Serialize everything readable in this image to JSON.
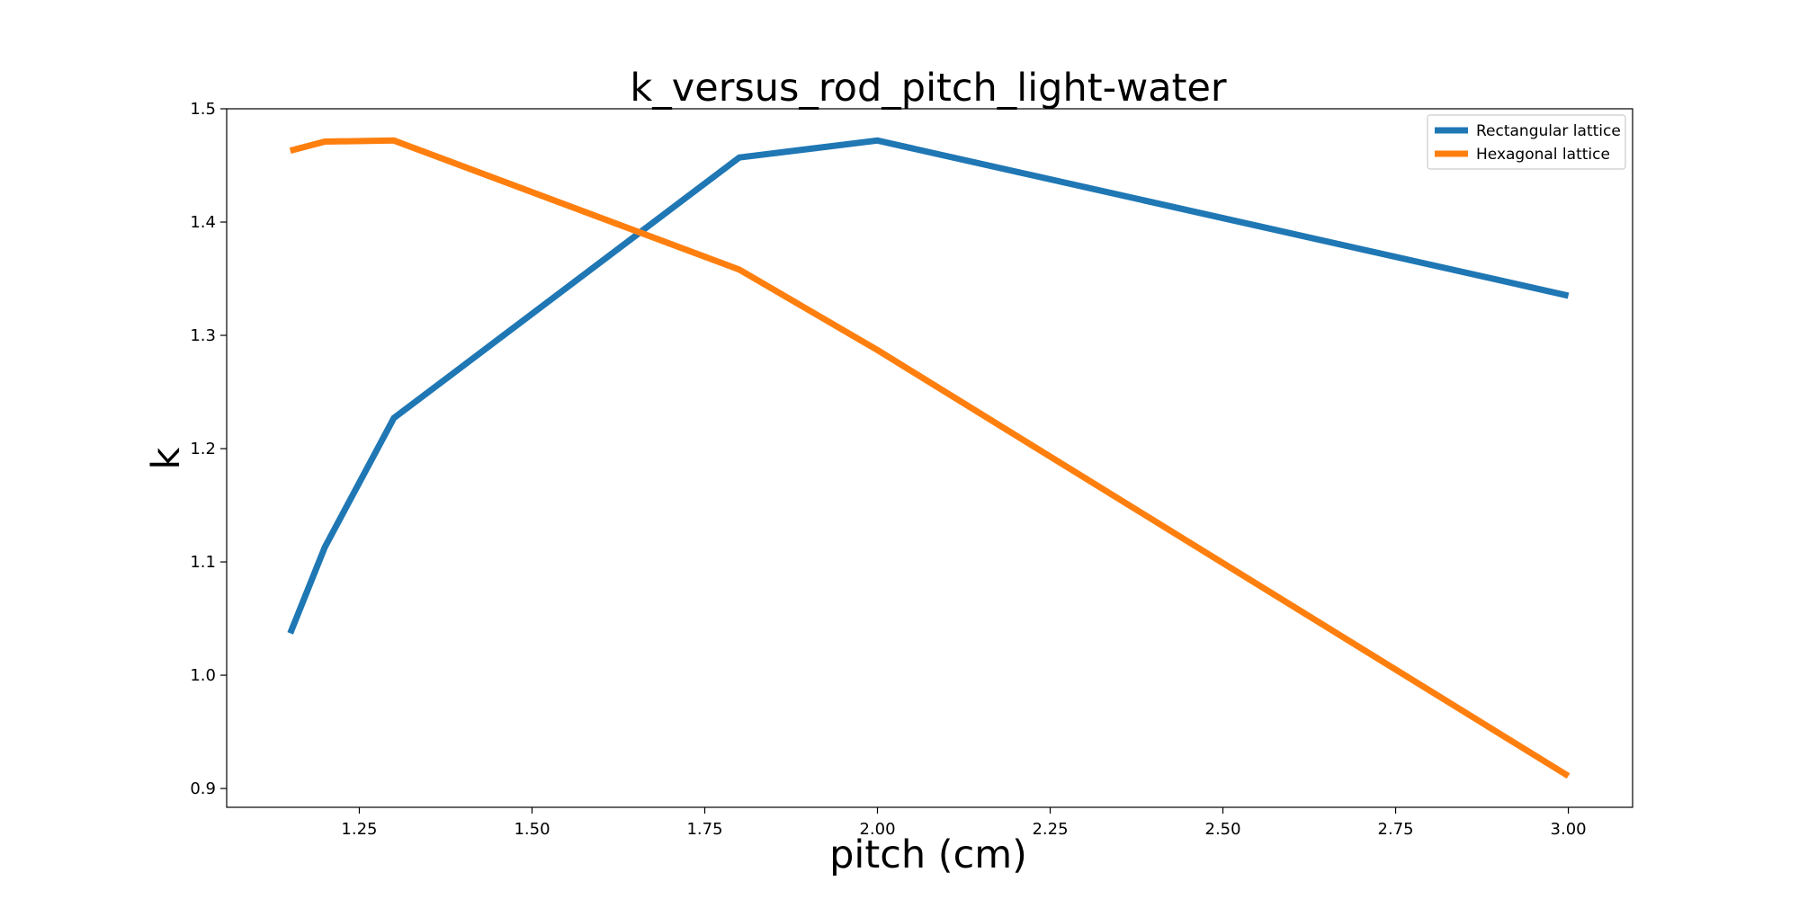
{
  "chart_data": {
    "type": "line",
    "title": "k_versus_rod_pitch_light-water",
    "xlabel": "pitch (cm)",
    "ylabel": "k",
    "xlim": [
      1.058,
      3.093
    ],
    "ylim": [
      0.8834,
      1.5
    ],
    "xticks": [
      "1.25",
      "1.50",
      "1.75",
      "2.00",
      "2.25",
      "2.50",
      "2.75",
      "3.00"
    ],
    "xtick_values": [
      1.25,
      1.5,
      1.75,
      2.0,
      2.25,
      2.5,
      2.75,
      3.0
    ],
    "yticks": [
      "0.9",
      "1.0",
      "1.1",
      "1.2",
      "1.3",
      "1.4",
      "1.5"
    ],
    "ytick_values": [
      0.9,
      1.0,
      1.1,
      1.2,
      1.3,
      1.4,
      1.5
    ],
    "grid": false,
    "legend_position": "top-right",
    "series": [
      {
        "name": "Rectangular lattice",
        "color": "#1f77b4",
        "x": [
          1.15,
          1.2,
          1.3,
          1.8,
          2.0,
          3.0
        ],
        "y": [
          1.037,
          1.113,
          1.227,
          1.457,
          1.472,
          1.335
        ]
      },
      {
        "name": "Hexagonal lattice",
        "color": "#ff7f0e",
        "x": [
          1.15,
          1.2,
          1.3,
          1.8,
          2.0,
          3.0
        ],
        "y": [
          1.463,
          1.471,
          1.472,
          1.358,
          1.287,
          0.911
        ]
      }
    ]
  }
}
